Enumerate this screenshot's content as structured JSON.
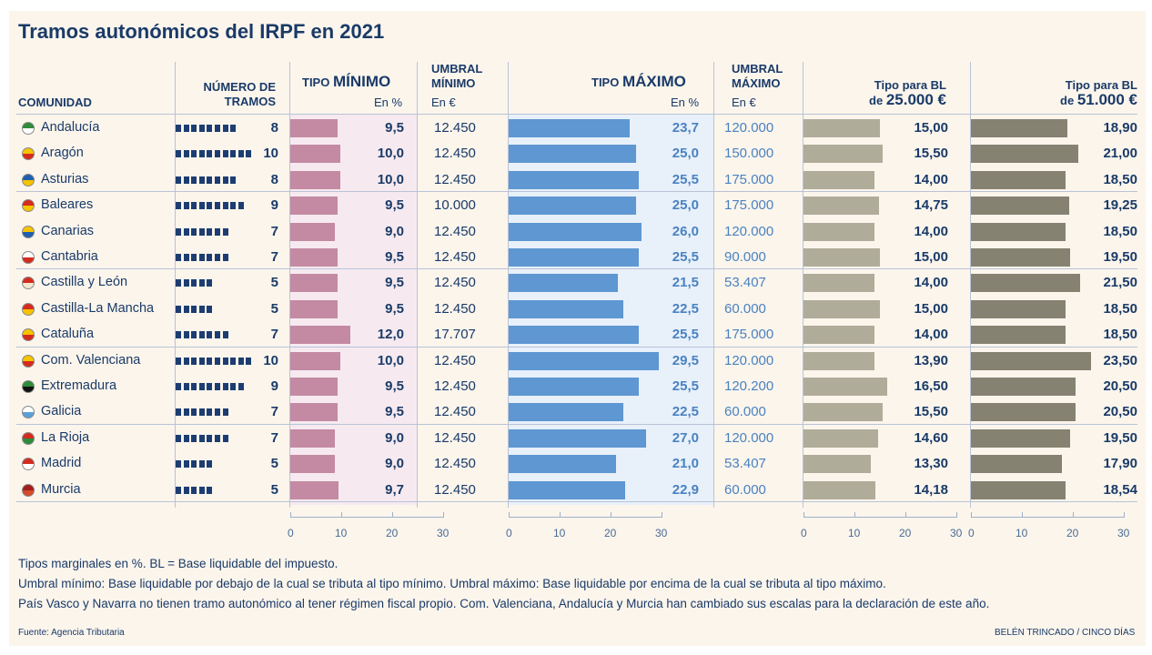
{
  "title": "Tramos autonómicos del IRPF en 2021",
  "headers": {
    "comunidad": "COMUNIDAD",
    "tramos_1": "NÚMERO DE",
    "tramos_2": "TRAMOS",
    "tipo_min_a": "TIPO ",
    "tipo_min_b": "MÍNIMO",
    "en_pct": "En %",
    "umbral_min_1": "UMBRAL",
    "umbral_min_2": "MÍNIMO",
    "en_eur": "En €",
    "tipo_max_a": "TIPO ",
    "tipo_max_b": "MÁXIMO",
    "umbral_max_1": "UMBRAL",
    "umbral_max_2": "MÁXIMO",
    "bl25_1": "Tipo para BL",
    "bl25_2a": "de ",
    "bl25_2b": "25.000 €",
    "bl51_1": "Tipo para BL",
    "bl51_2a": "de ",
    "bl51_2b": "51.000 €"
  },
  "colors": {
    "tramos": "#1d3d72",
    "tipo_min": "#c48aa3",
    "tipo_min_bg": "#f6eaf0",
    "tipo_max": "#5e97d2",
    "tipo_max_bg": "#e8f0fa",
    "bl25": "#b0ac9a",
    "bl51": "#858271"
  },
  "chart_data": {
    "type": "bar",
    "categories": [
      "Andalucía",
      "Aragón",
      "Asturias",
      "Baleares",
      "Canarias",
      "Cantabria",
      "Castilla y León",
      "Castilla-La Mancha",
      "Cataluña",
      "Com. Valenciana",
      "Extremadura",
      "Galicia",
      "La Rioja",
      "Madrid",
      "Murcia"
    ],
    "num_tramos": [
      8,
      10,
      8,
      9,
      7,
      7,
      5,
      5,
      7,
      10,
      9,
      7,
      7,
      5,
      5
    ],
    "tipo_minimo": [
      "9,5",
      "10,0",
      "10,0",
      "9,5",
      "9,0",
      "9,5",
      "9,5",
      "9,5",
      "12,0",
      "10,0",
      "9,5",
      "9,5",
      "9,0",
      "9,0",
      "9,7"
    ],
    "tipo_minimo_values": [
      9.5,
      10.0,
      10.0,
      9.5,
      9.0,
      9.5,
      9.5,
      9.5,
      12.0,
      10.0,
      9.5,
      9.5,
      9.0,
      9.0,
      9.7
    ],
    "umbral_minimo": [
      "12.450",
      "12.450",
      "12.450",
      "10.000",
      "12.450",
      "12.450",
      "12.450",
      "12.450",
      "17.707",
      "12.450",
      "12.450",
      "12.450",
      "12.450",
      "12.450",
      "12.450"
    ],
    "tipo_maximo": [
      "23,7",
      "25,0",
      "25,5",
      "25,0",
      "26,0",
      "25,5",
      "21,5",
      "22,5",
      "25,5",
      "29,5",
      "25,5",
      "22,5",
      "27,0",
      "21,0",
      "22,9"
    ],
    "tipo_maximo_values": [
      23.7,
      25.0,
      25.5,
      25.0,
      26.0,
      25.5,
      21.5,
      22.5,
      25.5,
      29.5,
      25.5,
      22.5,
      27.0,
      21.0,
      22.9
    ],
    "umbral_maximo": [
      "120.000",
      "150.000",
      "175.000",
      "175.000",
      "120.000",
      "90.000",
      "53.407",
      "60.000",
      "175.000",
      "120.000",
      "120.200",
      "60.000",
      "120.000",
      "53.407",
      "60.000"
    ],
    "tipo_bl_25000": [
      "15,00",
      "15,50",
      "14,00",
      "14,75",
      "14,00",
      "15,00",
      "14,00",
      "15,00",
      "14,00",
      "13,90",
      "16,50",
      "15,50",
      "14,60",
      "13,30",
      "14,18"
    ],
    "tipo_bl_25000_values": [
      15.0,
      15.5,
      14.0,
      14.75,
      14.0,
      15.0,
      14.0,
      15.0,
      14.0,
      13.9,
      16.5,
      15.5,
      14.6,
      13.3,
      14.18
    ],
    "tipo_bl_51000": [
      "18,90",
      "21,00",
      "18,50",
      "19,25",
      "18,50",
      "19,50",
      "21,50",
      "18,50",
      "18,50",
      "23,50",
      "20,50",
      "20,50",
      "19,50",
      "17,90",
      "18,54"
    ],
    "tipo_bl_51000_values": [
      18.9,
      21.0,
      18.5,
      19.25,
      18.5,
      19.5,
      21.5,
      18.5,
      18.5,
      23.5,
      20.5,
      20.5,
      19.5,
      17.9,
      18.54
    ],
    "axis_range": [
      0,
      30
    ],
    "axis_ticks": [
      "0",
      "10",
      "20",
      "30"
    ]
  },
  "footnotes": [
    "Tipos marginales en %. BL = Base liquidable del impuesto.",
    "Umbral mínimo: Base liquidable por debajo de la cual se tributa al tipo mínimo. Umbral máximo: Base liquidable por encima de la cual se tributa al tipo máximo.",
    "País Vasco y Navarra no tienen tramo autonómico al tener régimen fiscal propio. Com. Valenciana, Andalucía y Murcia han cambiado sus escalas para la declaración de este año."
  ],
  "source": "Fuente: Agencia Tributaria",
  "credit": "BELÉN TRINCADO / CINCO DÍAS"
}
